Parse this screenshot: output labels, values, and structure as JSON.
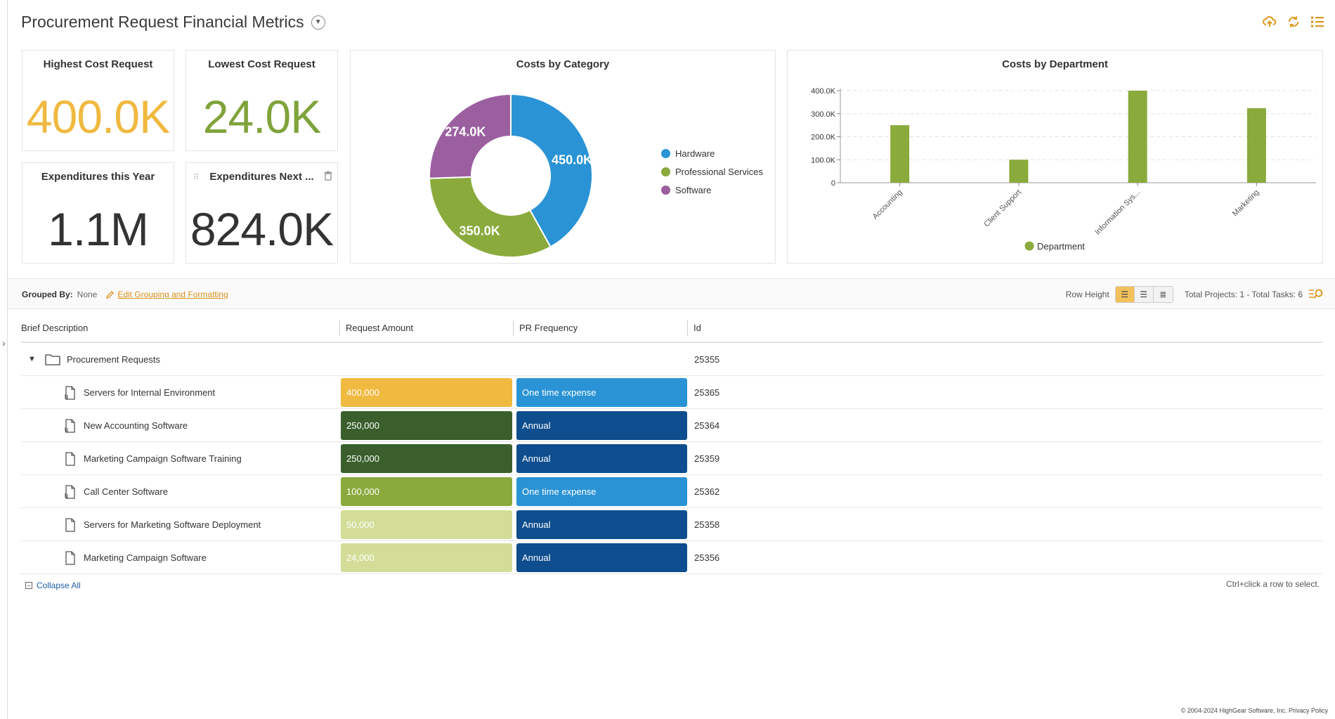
{
  "header": {
    "title": "Procurement Request Financial Metrics"
  },
  "kpis": {
    "highest": {
      "title": "Highest Cost Request",
      "value": "400.0K",
      "color": "#f0b940"
    },
    "lowest": {
      "title": "Lowest Cost Request",
      "value": "24.0K",
      "color": "#7fa33a"
    },
    "this_year": {
      "title": "Expenditures this Year",
      "value": "1.1M",
      "color": "#333333"
    },
    "next_year": {
      "title": "Expenditures Next ...",
      "value": "824.0K",
      "color": "#333333"
    }
  },
  "chart_data": [
    {
      "type": "pie",
      "title": "Costs by Category",
      "categories": [
        "Hardware",
        "Professional Services",
        "Software"
      ],
      "values": [
        450000,
        350000,
        274000
      ],
      "labels": [
        "450.0K",
        "350.0K",
        "274.0K"
      ],
      "colors": [
        "#2a93d5",
        "#8aaa3c",
        "#9b5fa0"
      ],
      "legend": "right"
    },
    {
      "type": "bar",
      "title": "Costs by Department",
      "categories": [
        "Accounting",
        "Client Support",
        "Information Sys...",
        "Marketing"
      ],
      "series": [
        {
          "name": "Department",
          "values": [
            250000,
            100000,
            400000,
            324000
          ]
        }
      ],
      "ylim": [
        0,
        400000
      ],
      "yticks": [
        "0",
        "100.0K",
        "200.0K",
        "300.0K",
        "400.0K"
      ],
      "color": "#8aaa3c",
      "legend": "bottom",
      "grid": true
    }
  ],
  "toolbar": {
    "grouped_by_label": "Grouped By:",
    "grouped_by_value": "None",
    "edit_link": "Edit Grouping and Formatting",
    "row_height_label": "Row Height",
    "totals": "Total Projects: 1 - Total Tasks: 6"
  },
  "grid": {
    "columns": [
      "Brief Description",
      "Request Amount",
      "PR Frequency",
      "Id"
    ],
    "group_row": {
      "label": "Procurement Requests",
      "id": "25355"
    },
    "rows": [
      {
        "desc": "Servers for Internal Environment",
        "amount": "400,000",
        "amount_color": "#f0b940",
        "amount_text": "#ffffff",
        "freq": "One time expense",
        "freq_color": "#2a93d5",
        "id": "25365",
        "attachment": true
      },
      {
        "desc": "New Accounting Software",
        "amount": "250,000",
        "amount_color": "#3a5f2c",
        "amount_text": "#ffffff",
        "freq": "Annual",
        "freq_color": "#0e4e8e",
        "id": "25364",
        "attachment": true
      },
      {
        "desc": "Marketing Campaign Software Training",
        "amount": "250,000",
        "amount_color": "#3a5f2c",
        "amount_text": "#ffffff",
        "freq": "Annual",
        "freq_color": "#0e4e8e",
        "id": "25359",
        "attachment": false
      },
      {
        "desc": "Call Center Software",
        "amount": "100,000",
        "amount_color": "#8aaa3c",
        "amount_text": "#ffffff",
        "freq": "One time expense",
        "freq_color": "#2a93d5",
        "id": "25362",
        "attachment": true
      },
      {
        "desc": "Servers for Marketing Software Deployment",
        "amount": "50,000",
        "amount_color": "#d3dd97",
        "amount_text": "#ffffff",
        "freq": "Annual",
        "freq_color": "#0e4e8e",
        "id": "25358",
        "attachment": false
      },
      {
        "desc": "Marketing Campaign Software",
        "amount": "24,000",
        "amount_color": "#d3dd97",
        "amount_text": "#ffffff",
        "freq": "Annual",
        "freq_color": "#0e4e8e",
        "id": "25356",
        "attachment": false
      }
    ]
  },
  "footer": {
    "collapse_all": "Collapse All",
    "hint": "Ctrl+click a row to select.",
    "copyright": "© 2004-2024 HighGear Software, Inc. Privacy Policy"
  },
  "icons": [
    "cloud-upload-icon",
    "refresh-icon",
    "list-icon",
    "pencil-icon",
    "search-icon",
    "trash-icon",
    "drag-handle-icon",
    "folder-icon",
    "document-icon",
    "attachment-icon",
    "caret-down-icon"
  ]
}
